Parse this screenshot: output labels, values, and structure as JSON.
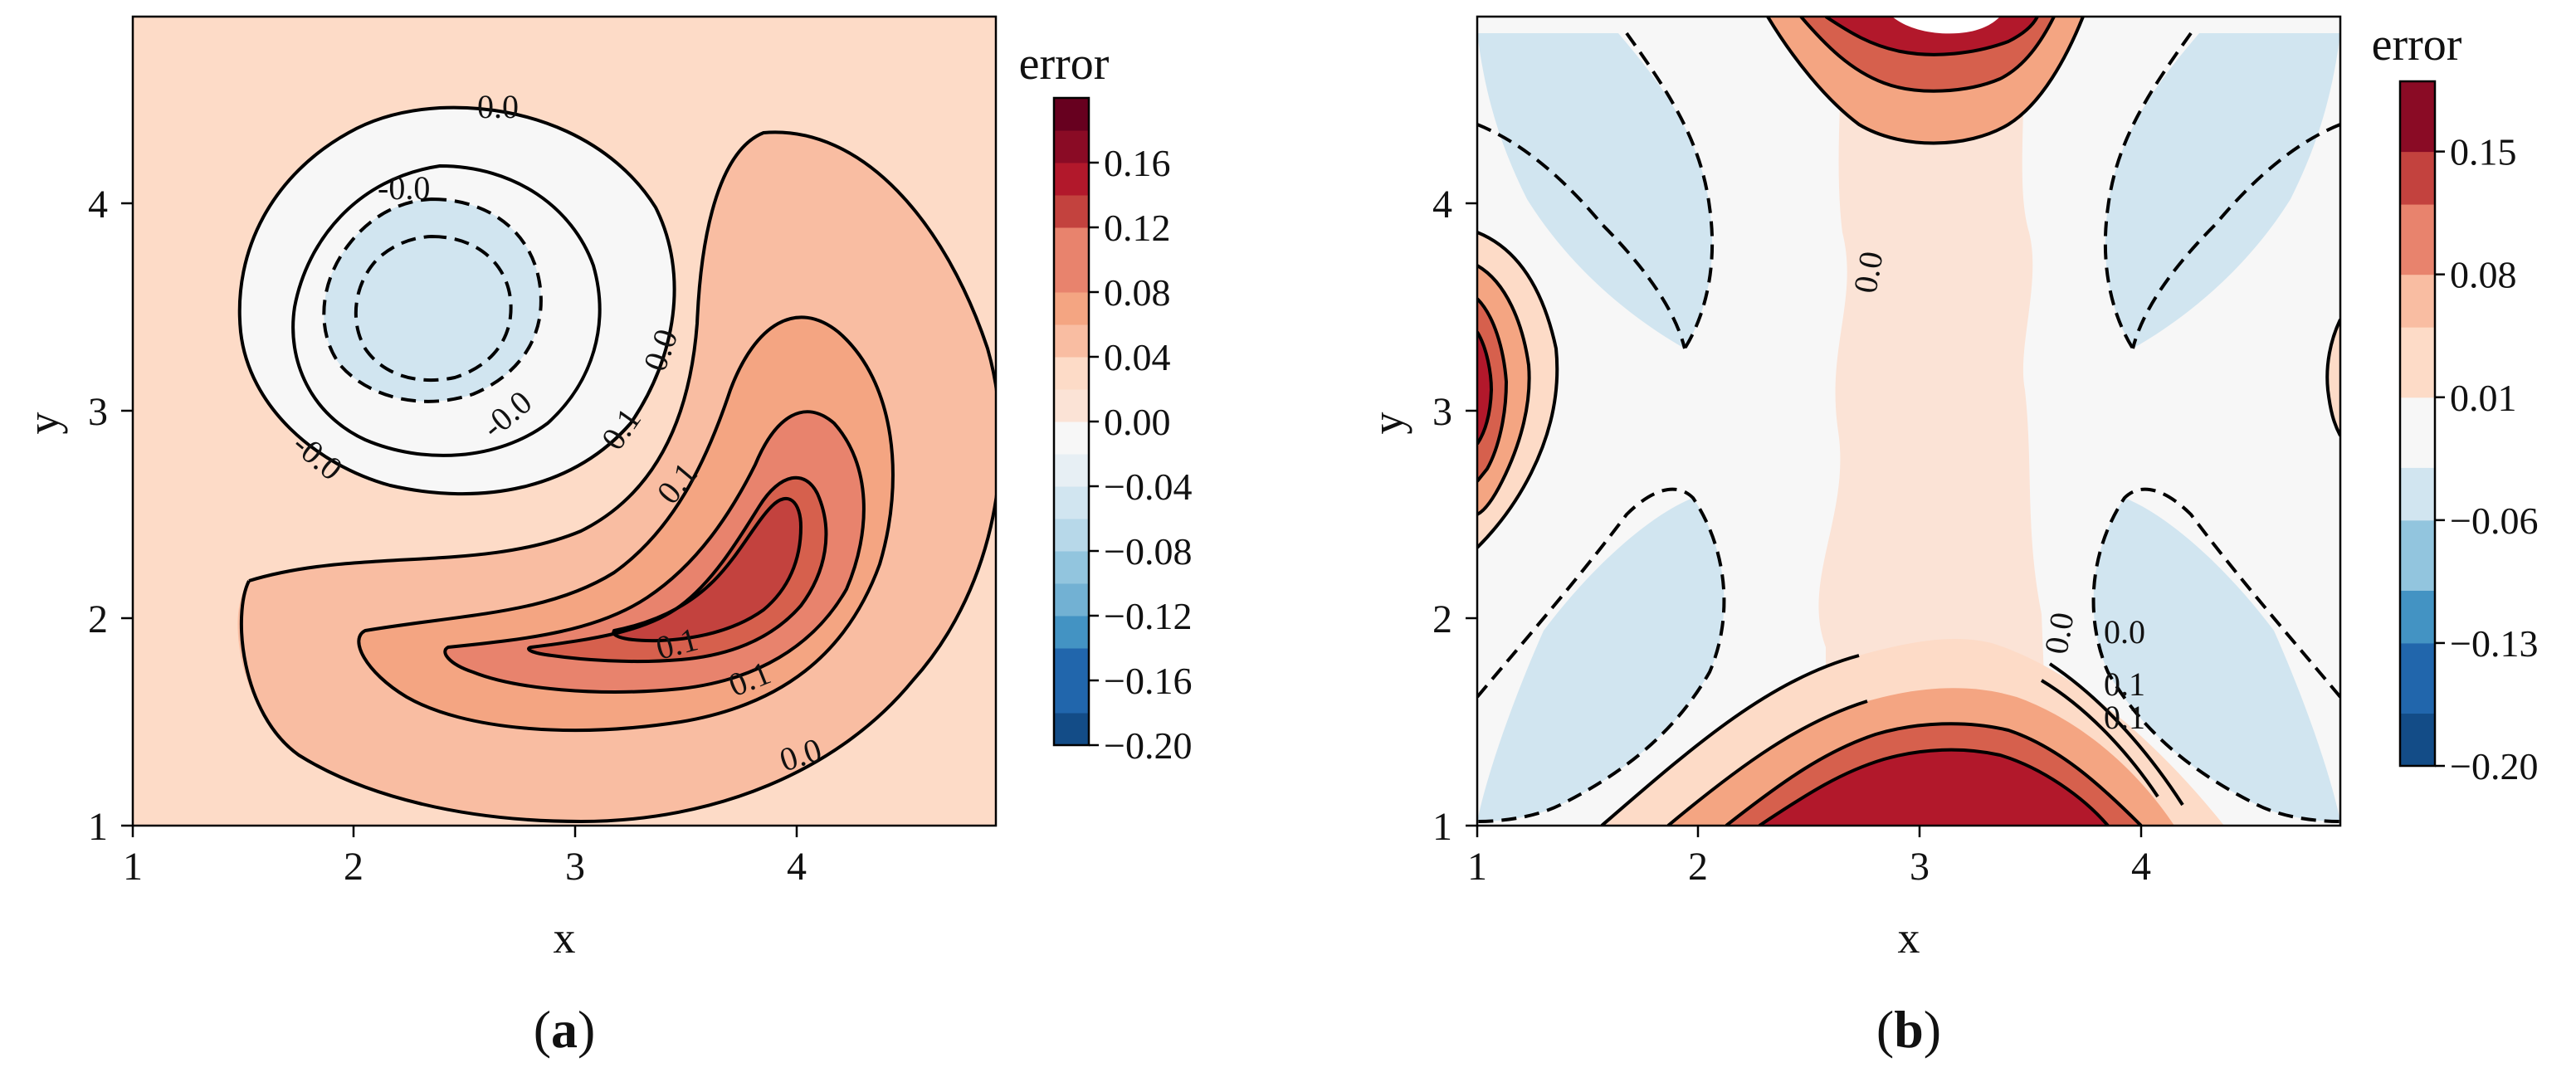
{
  "chart_data": [
    {
      "type": "contour",
      "panel_label": "a",
      "xlabel": "x",
      "ylabel": "y",
      "xlim": [
        1,
        4.9
      ],
      "ylim": [
        1,
        4.9
      ],
      "xticks": [
        "1",
        "2",
        "3",
        "4"
      ],
      "yticks": [
        "1",
        "2",
        "3",
        "4"
      ],
      "colorbar": {
        "title": "error",
        "levels": [
          -0.2,
          -0.18,
          -0.16,
          -0.14,
          -0.12,
          -0.1,
          -0.08,
          -0.06,
          -0.04,
          -0.02,
          0.0,
          0.02,
          0.04,
          0.06,
          0.08,
          0.1,
          0.12,
          0.14,
          0.16,
          0.18,
          0.2
        ],
        "tick_labels": [
          "0.16",
          "0.12",
          "0.08",
          "0.04",
          "0.00",
          "−0.04",
          "−0.08",
          "−0.12",
          "−0.16",
          "−0.20"
        ]
      },
      "contour_labels": [
        "0.0",
        "-0.0",
        "-0.0",
        "0.0",
        "-0.0",
        "0.1",
        "0.1",
        "0.1",
        "0.1",
        "0.0"
      ],
      "features": [
        {
          "kind": "positive-lobe",
          "center": [
            3.6,
            2.2
          ],
          "peak": 0.16
        },
        {
          "kind": "negative-lobe",
          "center": [
            2.5,
            3.4
          ],
          "peak": -0.05
        }
      ]
    },
    {
      "type": "contour",
      "panel_label": "b",
      "xlabel": "x",
      "ylabel": "y",
      "xlim": [
        1,
        4.9
      ],
      "ylim": [
        1,
        4.9
      ],
      "xticks": [
        "1",
        "2",
        "3",
        "4"
      ],
      "yticks": [
        "1",
        "2",
        "3",
        "4"
      ],
      "colorbar": {
        "title": "error",
        "levels": [
          -0.2,
          -0.17,
          -0.13,
          -0.1,
          -0.06,
          -0.03,
          0.01,
          0.05,
          0.08,
          0.12,
          0.15,
          0.19
        ],
        "tick_labels": [
          "0.15",
          "0.08",
          "0.01",
          "−0.06",
          "−0.13",
          "−0.20"
        ]
      },
      "contour_labels": [
        "0.0",
        "0.0",
        "0.0",
        "0.1",
        "0.1"
      ],
      "features": [
        {
          "kind": "positive-band",
          "center": [
            3.1,
            1.0
          ],
          "peak": 0.18
        },
        {
          "kind": "positive-band",
          "center": [
            3.1,
            4.9
          ],
          "peak": 0.18
        },
        {
          "kind": "positive-band",
          "center": [
            1.0,
            3.1
          ],
          "peak": 0.18
        },
        {
          "kind": "negative-lobe",
          "center": [
            1.4,
            1.5
          ],
          "peak": -0.04
        },
        {
          "kind": "negative-lobe",
          "center": [
            1.4,
            4.1
          ],
          "peak": -0.04
        },
        {
          "kind": "negative-lobe",
          "center": [
            4.6,
            1.5
          ],
          "peak": -0.04
        },
        {
          "kind": "negative-lobe",
          "center": [
            4.6,
            4.1
          ],
          "peak": -0.04
        }
      ]
    }
  ],
  "colors": {
    "cmap": [
      "#053061",
      "#134c87",
      "#2166ac",
      "#3a87bd",
      "#4393c3",
      "#72b1d3",
      "#92c5de",
      "#b7d8e9",
      "#d1e5f0",
      "#e7eff4",
      "#f7f7f7",
      "#fbe3d6",
      "#fddbc7",
      "#f9bda2",
      "#f4a582",
      "#e8836d",
      "#d6604d",
      "#c3423e",
      "#b2182b",
      "#8a0b25",
      "#67001f"
    ]
  }
}
